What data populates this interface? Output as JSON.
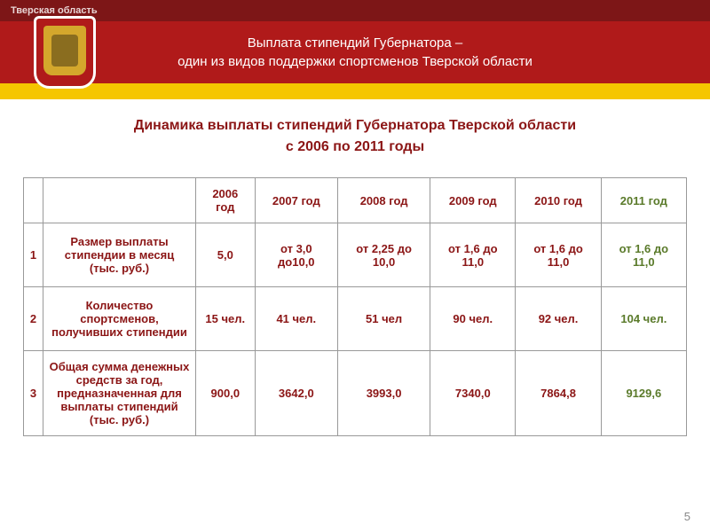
{
  "header": {
    "region": "Тверская область",
    "title_line1": "Выплата стипендий Губернатора –",
    "title_line2": "один из видов поддержки спортсменов Тверской области"
  },
  "content": {
    "title_line1": "Динамика выплаты стипендий Губернатора Тверской области",
    "title_line2": "с 2006 по 2011 годы"
  },
  "table": {
    "columns": [
      "",
      "",
      "2006 год",
      "2007 год",
      "2008 год",
      "2009 год",
      "2010 год",
      "2011 год"
    ],
    "rows": [
      {
        "num": "1",
        "label": "Размер выплаты стипендии в месяц (тыс. руб.)",
        "values": [
          "5,0",
          "от 3,0 до10,0",
          "от 2,25 до 10,0",
          "от 1,6 до 11,0",
          "от 1,6 до 11,0",
          "от 1,6 до 11,0"
        ]
      },
      {
        "num": "2",
        "label": "Количество спортсменов, получивших стипендии",
        "values": [
          "15 чел.",
          "41 чел.",
          "51 чел",
          "90 чел.",
          "92 чел.",
          "104 чел."
        ]
      },
      {
        "num": "3",
        "label": "Общая сумма денежных средств за год, предназначенная для выплаты стипендий (тыс. руб.)",
        "values": [
          "900,0",
          "3642,0",
          "3993,0",
          "7340,0",
          "7864,8",
          "9129,6"
        ]
      }
    ]
  },
  "page_number": "5",
  "colors": {
    "header_dark": "#7d1617",
    "header_red": "#b01a1a",
    "yellow": "#f5c600",
    "title_red": "#8b1515",
    "last_col": "#5a7a2a"
  }
}
